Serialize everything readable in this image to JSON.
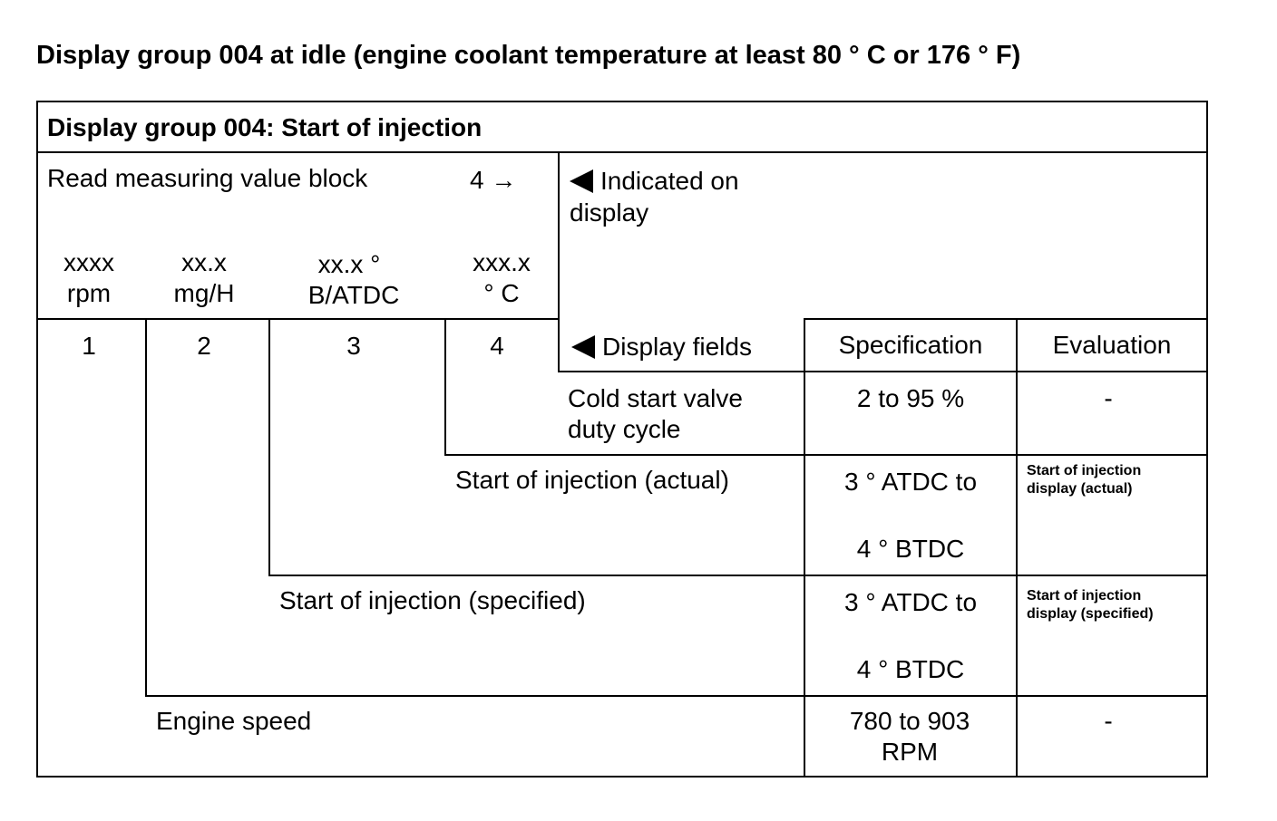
{
  "page_title": "Display group 004 at idle (engine coolant temperature at least 80 ° C or 176 ° F)",
  "table": {
    "header_title": "Display group 004: Start of injection",
    "read_block_label": "Read measuring value block",
    "read_block_number": "4 →",
    "indicated_label": "Indicated on display",
    "fields": [
      {
        "value": "xxxx",
        "unit": "rpm",
        "number": "1"
      },
      {
        "value": "xx.x",
        "unit": "mg/H",
        "number": "2"
      },
      {
        "value": "xx.x °",
        "unit": "B/ATDC",
        "number": "3"
      },
      {
        "value": "xxx.x",
        "unit": "° C",
        "number": "4"
      }
    ],
    "columns": {
      "display_fields": "Display fields",
      "specification": "Specification",
      "evaluation": "Evaluation"
    },
    "rows": [
      {
        "name": "Cold start valve duty cycle",
        "spec": "2 to 95 %",
        "evaluation": "-"
      },
      {
        "name": "Start of injection (actual)",
        "spec_line1": "3 ° ATDC to",
        "spec_line2": "4 ° BTDC",
        "evaluation": "Start of injection display (actual)"
      },
      {
        "name": "Start of injection (specified)",
        "spec_line1": "3 ° ATDC to",
        "spec_line2": "4 ° BTDC",
        "evaluation": "Start of injection display (specified)"
      },
      {
        "name": "Engine speed",
        "spec": "780 to 903 RPM",
        "evaluation": "-"
      }
    ]
  }
}
